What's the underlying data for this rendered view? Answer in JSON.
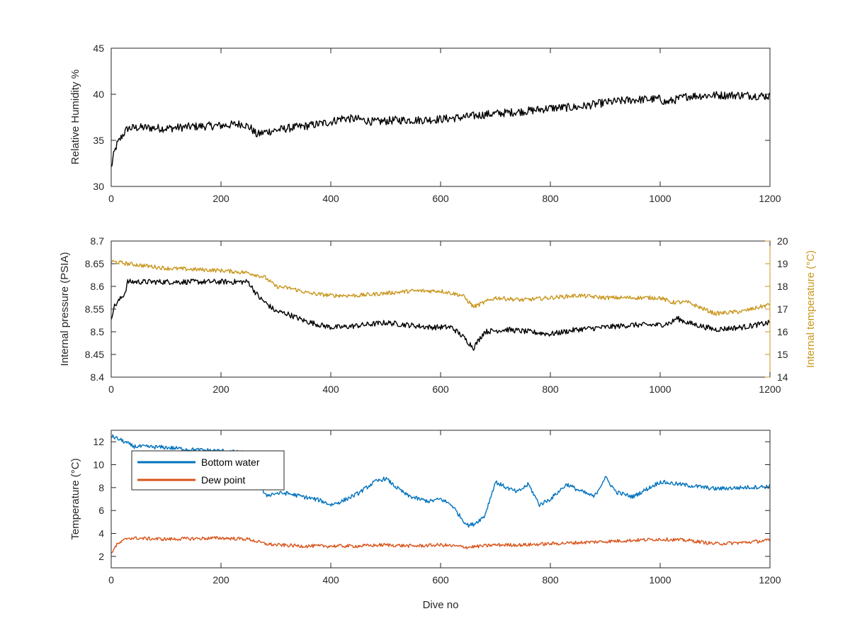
{
  "chart_data": [
    {
      "type": "line",
      "title": "",
      "xlabel": "",
      "ylabel": "Relative Humidity %",
      "xlim": [
        0,
        1200
      ],
      "ylim": [
        30,
        45
      ],
      "xticks": [
        0,
        200,
        400,
        600,
        800,
        1000,
        1200
      ],
      "yticks": [
        30,
        35,
        40,
        45
      ],
      "grid": false,
      "series": [
        {
          "color": "#000000",
          "x": [
            0,
            5,
            10,
            20,
            30,
            50,
            100,
            150,
            200,
            240,
            255,
            265,
            280,
            320,
            360,
            400,
            420,
            450,
            480,
            520,
            560,
            600,
            640,
            680,
            720,
            760,
            800,
            850,
            900,
            950,
            1000,
            1010,
            1050,
            1100,
            1150,
            1200
          ],
          "y": [
            32,
            33.5,
            34.5,
            35.5,
            36.3,
            36.4,
            36.3,
            36.5,
            36.6,
            36.8,
            36.3,
            35.6,
            35.9,
            36.3,
            36.6,
            37.0,
            37.4,
            37.3,
            37.0,
            37.2,
            37.2,
            37.3,
            37.5,
            37.8,
            38.0,
            38.2,
            38.5,
            38.6,
            39.1,
            39.4,
            39.5,
            39.1,
            39.8,
            39.9,
            39.9,
            39.8
          ]
        }
      ]
    },
    {
      "type": "line",
      "title": "",
      "xlabel": "",
      "ylabel": "Internal pressure (PSIA)",
      "y2label": "Internal temperature (°C)",
      "xlim": [
        0,
        1200
      ],
      "ylim": [
        8.4,
        8.7
      ],
      "y2lim": [
        14,
        20
      ],
      "xticks": [
        0,
        200,
        400,
        600,
        800,
        1000,
        1200
      ],
      "yticks": [
        8.4,
        8.45,
        8.5,
        8.55,
        8.6,
        8.65,
        8.7
      ],
      "y2ticks": [
        14,
        15,
        16,
        17,
        18,
        19,
        20
      ],
      "grid": false,
      "series": [
        {
          "axis": "left",
          "color": "#000000",
          "x": [
            0,
            5,
            15,
            25,
            30,
            50,
            100,
            150,
            200,
            250,
            255,
            270,
            300,
            320,
            350,
            380,
            400,
            420,
            460,
            500,
            540,
            580,
            620,
            640,
            660,
            680,
            720,
            760,
            800,
            850,
            900,
            950,
            1000,
            1020,
            1030,
            1050,
            1100,
            1150,
            1200
          ],
          "y": [
            8.53,
            8.555,
            8.57,
            8.585,
            8.61,
            8.61,
            8.61,
            8.61,
            8.61,
            8.61,
            8.6,
            8.575,
            8.545,
            8.54,
            8.525,
            8.515,
            8.51,
            8.51,
            8.515,
            8.52,
            8.515,
            8.51,
            8.51,
            8.49,
            8.465,
            8.5,
            8.505,
            8.5,
            8.495,
            8.505,
            8.51,
            8.515,
            8.515,
            8.52,
            8.53,
            8.52,
            8.505,
            8.51,
            8.52
          ]
        },
        {
          "axis": "right",
          "color": "#c9961d",
          "x": [
            0,
            30,
            100,
            200,
            250,
            280,
            300,
            330,
            360,
            400,
            450,
            500,
            550,
            600,
            640,
            660,
            700,
            750,
            800,
            850,
            900,
            950,
            1000,
            1020,
            1050,
            1080,
            1100,
            1150,
            1200
          ],
          "y": [
            19.1,
            19.0,
            18.8,
            18.7,
            18.6,
            18.4,
            18.0,
            17.9,
            17.7,
            17.6,
            17.6,
            17.7,
            17.8,
            17.8,
            17.6,
            17.1,
            17.5,
            17.4,
            17.5,
            17.6,
            17.5,
            17.5,
            17.5,
            17.3,
            17.3,
            17.0,
            16.8,
            16.9,
            17.2
          ]
        }
      ]
    },
    {
      "type": "line",
      "title": "",
      "xlabel": "Dive no",
      "ylabel": "Temperature (°C)",
      "xlim": [
        0,
        1200
      ],
      "ylim": [
        1,
        13
      ],
      "xticks": [
        0,
        200,
        400,
        600,
        800,
        1000,
        1200
      ],
      "yticks": [
        2,
        4,
        6,
        8,
        10,
        12
      ],
      "grid": false,
      "legend_position": "top-left",
      "series": [
        {
          "name": "Bottom water",
          "color": "#0072bd",
          "x": [
            0,
            20,
            40,
            100,
            150,
            200,
            250,
            280,
            300,
            320,
            350,
            380,
            400,
            420,
            450,
            480,
            500,
            520,
            540,
            560,
            580,
            600,
            620,
            640,
            650,
            660,
            680,
            700,
            720,
            740,
            760,
            780,
            800,
            830,
            850,
            880,
            900,
            920,
            950,
            1000,
            1050,
            1100,
            1150,
            1200
          ],
          "y": [
            12.5,
            12.1,
            11.6,
            11.5,
            11.3,
            11.2,
            11.0,
            7.3,
            7.5,
            7.5,
            7.2,
            6.9,
            6.5,
            6.8,
            7.5,
            8.5,
            8.8,
            8.0,
            7.3,
            7.0,
            6.8,
            7.0,
            6.5,
            5.2,
            4.7,
            4.8,
            5.5,
            8.5,
            8.0,
            7.6,
            8.3,
            6.5,
            7.0,
            8.3,
            7.8,
            7.2,
            8.9,
            7.6,
            7.2,
            8.5,
            8.2,
            7.9,
            8.0,
            8.1
          ]
        },
        {
          "name": "Dew point",
          "color": "#d95319",
          "x": [
            0,
            10,
            30,
            100,
            200,
            250,
            280,
            300,
            350,
            400,
            450,
            500,
            550,
            600,
            650,
            700,
            750,
            800,
            850,
            900,
            950,
            1000,
            1050,
            1100,
            1150,
            1200
          ],
          "y": [
            2.3,
            3.0,
            3.6,
            3.5,
            3.6,
            3.5,
            3.1,
            3.0,
            2.9,
            2.9,
            2.9,
            3.0,
            2.9,
            3.0,
            2.8,
            3.0,
            3.0,
            3.1,
            3.2,
            3.3,
            3.4,
            3.5,
            3.4,
            3.1,
            3.2,
            3.4
          ]
        }
      ]
    }
  ]
}
